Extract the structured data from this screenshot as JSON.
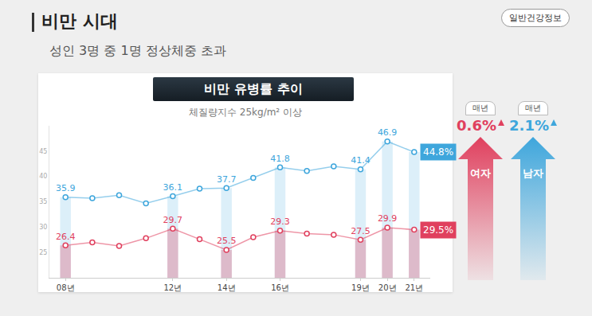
{
  "header": {
    "title": "비만 시대",
    "subtitle": "성인 3명 중 1명 정상체중 초과",
    "badge": "일반건강정보"
  },
  "chart_data": {
    "type": "line",
    "title": "비만 유병률 추이",
    "subtitle": "체질량지수 25kg/m² 이상",
    "categories": [
      "08년",
      null,
      null,
      null,
      "12년",
      null,
      "14년",
      null,
      "16년",
      null,
      null,
      "19년",
      "20년",
      "21년"
    ],
    "series": [
      {
        "name": "남자",
        "color": "#3ea6dc",
        "values": [
          35.9,
          35.7,
          36.3,
          34.7,
          36.1,
          37.6,
          37.7,
          39.7,
          41.8,
          41.1,
          42.0,
          41.4,
          46.9,
          44.8
        ],
        "value_labels": [
          "35.9",
          null,
          null,
          null,
          "36.1",
          null,
          "37.7",
          null,
          "41.8",
          null,
          null,
          "41.4",
          "46.9",
          "44.8%"
        ]
      },
      {
        "name": "여자",
        "color": "#e0405e",
        "values": [
          26.4,
          27.0,
          26.3,
          27.8,
          29.7,
          27.6,
          25.5,
          28.0,
          29.3,
          28.7,
          28.5,
          27.5,
          29.9,
          29.5
        ],
        "value_labels": [
          "26.4",
          null,
          null,
          null,
          "29.7",
          null,
          "25.5",
          null,
          "29.3",
          null,
          null,
          "27.5",
          "29.9",
          "29.5%"
        ]
      }
    ],
    "ylim": [
      20,
      50
    ],
    "yticks": [
      25,
      30,
      35,
      40,
      45
    ],
    "grid": false,
    "data_labels": true,
    "marker": "circle"
  },
  "side_panel": {
    "period": "매년",
    "items": [
      {
        "label": "여자",
        "change": "0.6%"
      },
      {
        "label": "남자",
        "change": "2.1%"
      }
    ]
  }
}
